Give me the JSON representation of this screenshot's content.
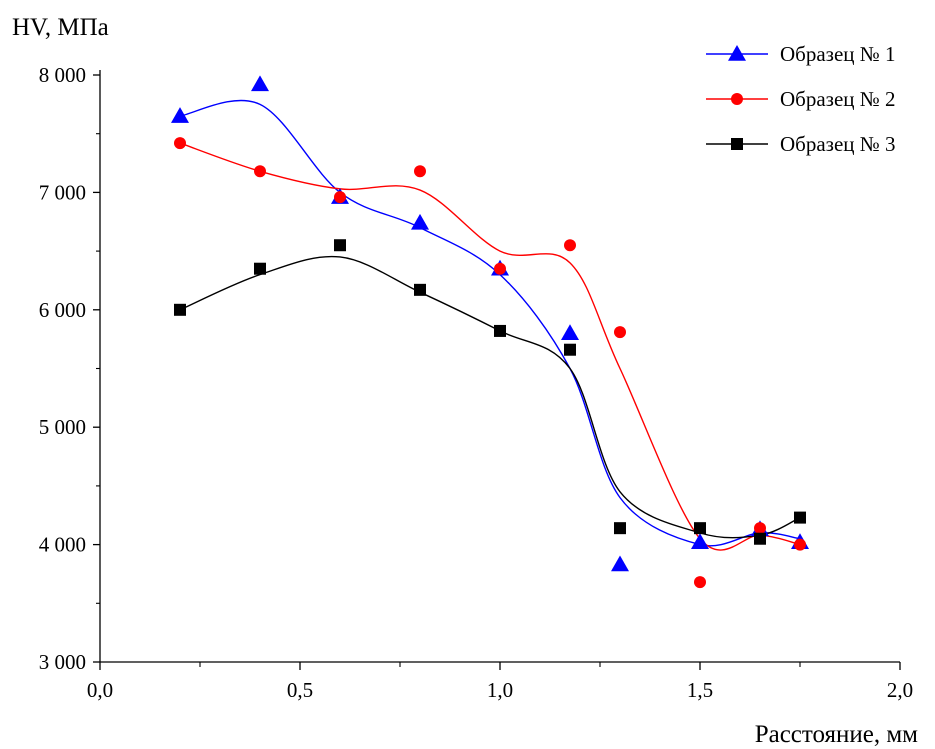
{
  "chart_data": {
    "type": "line",
    "ylabel": "HV, МПа",
    "xlabel": "Расстояние, мм",
    "xlim": [
      0,
      2
    ],
    "ylim": [
      3000,
      8000
    ],
    "x_ticks": [
      0,
      0.5,
      1.0,
      1.5,
      2.0
    ],
    "x_tick_labels": [
      "0,0",
      "0,5",
      "1,0",
      "1,5",
      "2,0"
    ],
    "y_ticks": [
      3000,
      4000,
      5000,
      6000,
      7000,
      8000
    ],
    "y_tick_labels": [
      "3 000",
      "4 000",
      "5 000",
      "6 000",
      "7 000",
      "8 000"
    ],
    "grid": false,
    "legend_position": "top-right",
    "series": [
      {
        "name": "Образец № 1",
        "color": "#0000ff",
        "marker": "triangle",
        "x": [
          0.2,
          0.4,
          0.6,
          0.8,
          1.0,
          1.175,
          1.3,
          1.5,
          1.65,
          1.75
        ],
        "y": [
          7650,
          7920,
          6960,
          6740,
          6350,
          5800,
          3830,
          4020,
          4130,
          4020
        ],
        "curve_y": [
          7650,
          7750,
          7000,
          6700,
          6300,
          5500,
          4400,
          4000,
          4100,
          4050
        ]
      },
      {
        "name": "Образец № 2",
        "color": "#ff0000",
        "marker": "circle",
        "x": [
          0.2,
          0.4,
          0.6,
          0.8,
          1.0,
          1.175,
          1.3,
          1.5,
          1.65,
          1.75
        ],
        "y": [
          7420,
          7180,
          6960,
          7180,
          6350,
          6550,
          5810,
          3680,
          4140,
          4000
        ],
        "curve_y": [
          7420,
          7180,
          7030,
          7020,
          6500,
          6400,
          5500,
          4050,
          4080,
          4000
        ]
      },
      {
        "name": "Образец № 3",
        "color": "#000000",
        "marker": "square",
        "x": [
          0.2,
          0.4,
          0.6,
          0.8,
          1.0,
          1.175,
          1.3,
          1.5,
          1.65,
          1.75
        ],
        "y": [
          6000,
          6350,
          6550,
          6170,
          5820,
          5660,
          4140,
          4140,
          4050,
          4230
        ],
        "curve_y": [
          6000,
          6300,
          6450,
          6150,
          5820,
          5500,
          4450,
          4100,
          4080,
          4230
        ]
      }
    ]
  }
}
